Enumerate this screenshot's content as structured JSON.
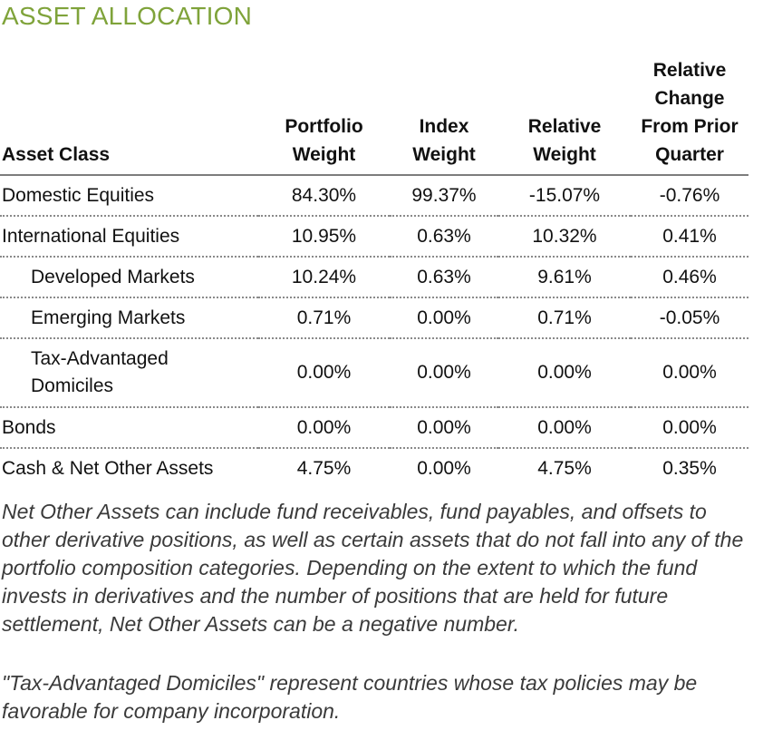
{
  "title": "ASSET ALLOCATION",
  "colors": {
    "title": "#7fa33a",
    "text": "#111111",
    "note_text": "#3a3a3a",
    "header_rule": "#7d7d7d",
    "row_divider": "#8a8a8a"
  },
  "table": {
    "headers": {
      "asset_class": "Asset Class",
      "portfolio_weight_line1": "Portfolio",
      "portfolio_weight_line2": "Weight",
      "index_weight_line1": "Index",
      "index_weight_line2": "Weight",
      "relative_weight_line1": "Relative",
      "relative_weight_line2": "Weight",
      "relative_change_line1": "Relative",
      "relative_change_line2": "Change",
      "relative_change_line3": "From Prior",
      "relative_change_line4": "Quarter"
    },
    "rows": [
      {
        "label": "Domestic Equities",
        "portfolio": "84.30%",
        "index": "99.37%",
        "relative": "-15.07%",
        "change": "-0.76%"
      },
      {
        "label": "International Equities",
        "portfolio": "10.95%",
        "index": "0.63%",
        "relative": "10.32%",
        "change": "0.41%"
      },
      {
        "label": "Developed Markets",
        "portfolio": "10.24%",
        "index": "0.63%",
        "relative": "9.61%",
        "change": "0.46%"
      },
      {
        "label": "Emerging Markets",
        "portfolio": "0.71%",
        "index": "0.00%",
        "relative": "0.71%",
        "change": "-0.05%"
      },
      {
        "label_line1": "Tax-Advantaged",
        "label_line2": "Domiciles",
        "portfolio": "0.00%",
        "index": "0.00%",
        "relative": "0.00%",
        "change": "0.00%"
      },
      {
        "label": "Bonds",
        "portfolio": "0.00%",
        "index": "0.00%",
        "relative": "0.00%",
        "change": "0.00%"
      },
      {
        "label": "Cash & Net Other Assets",
        "portfolio": "4.75%",
        "index": "0.00%",
        "relative": "4.75%",
        "change": "0.35%"
      }
    ]
  },
  "notes": {
    "net_other_assets": "Net Other Assets can include fund receivables, fund payables, and offsets to other derivative positions, as well as certain assets that do not fall into any of the portfolio composition categories. Depending on the extent to which the fund invests in derivatives and the number of positions that are held for future settlement, Net Other Assets can be a negative number.",
    "tax_advantaged": "\"Tax-Advantaged Domiciles\" represent countries whose tax policies may be favorable for company incorporation."
  }
}
